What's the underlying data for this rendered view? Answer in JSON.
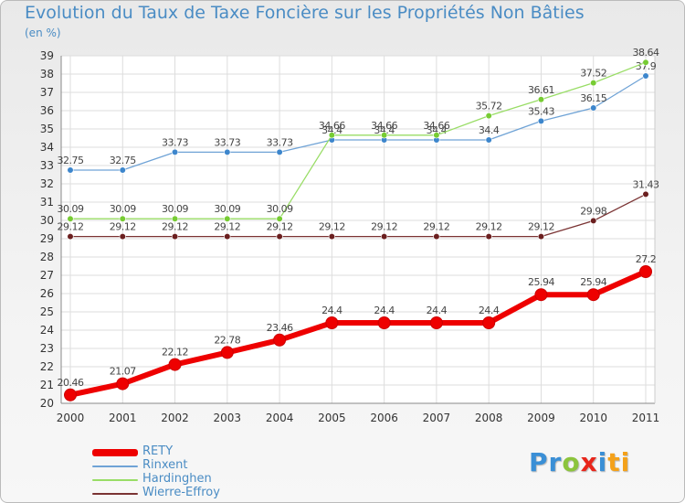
{
  "header": {
    "title": "Evolution du Taux de Taxe Foncière sur les Propriétés Non Bâties",
    "subtitle": "(en %)"
  },
  "brand": {
    "p1": "Pr",
    "p2": "o",
    "p3": "x",
    "p4": "i",
    "p5": "ti"
  },
  "chart_data": {
    "type": "line",
    "title": "Evolution du Taux de Taxe Foncière sur les Propriétés Non Bâties",
    "ylabel": "(en %)",
    "xlabel": "",
    "ylim": [
      20,
      39
    ],
    "grid": true,
    "legend_position": "bottom-left",
    "x": [
      "2000",
      "2001",
      "2002",
      "2003",
      "2004",
      "2005",
      "2006",
      "2007",
      "2008",
      "2009",
      "2010",
      "2011"
    ],
    "y_ticks": [
      20,
      21,
      22,
      23,
      24,
      25,
      26,
      27,
      28,
      29,
      30,
      31,
      32,
      33,
      34,
      35,
      36,
      37,
      38,
      39
    ],
    "series": [
      {
        "name": "RETY",
        "color": "#ee0000",
        "width": 6,
        "values": [
          20.46,
          21.07,
          22.12,
          22.78,
          23.46,
          24.4,
          24.4,
          24.4,
          24.4,
          25.94,
          25.94,
          27.2
        ],
        "labels": [
          "20.46",
          "21.07",
          "22.12",
          "22.78",
          "23.46",
          "24.4",
          "24.4",
          "24.4",
          "24.4",
          "25.94",
          "25.94",
          "27.2"
        ]
      },
      {
        "name": "Rinxent",
        "color": "#6fa3d6",
        "width": 1.3,
        "marker": "#3d86cc",
        "values": [
          32.75,
          32.75,
          33.73,
          33.73,
          33.73,
          34.4,
          34.4,
          34.4,
          34.4,
          35.43,
          36.15,
          37.9
        ],
        "labels": [
          "32.75",
          "32.75",
          "33.73",
          "33.73",
          "33.73",
          "34.4",
          "34.4",
          "34.4",
          "34.4",
          "35.43",
          "36.15",
          "37.9"
        ]
      },
      {
        "name": "Hardinghen",
        "color": "#99dd66",
        "width": 1.3,
        "marker": "#77cc33",
        "values": [
          30.09,
          30.09,
          30.09,
          30.09,
          30.09,
          34.66,
          34.66,
          34.66,
          35.72,
          36.61,
          37.52,
          38.64
        ],
        "labels": [
          "30.09",
          "30.09",
          "30.09",
          "30.09",
          "30.09",
          "34.66",
          "34.66",
          "34.66",
          "35.72",
          "36.61",
          "37.52",
          "38.64"
        ]
      },
      {
        "name": "Wierre-Effroy",
        "color": "#7a3333",
        "width": 1.3,
        "marker": "#6b1f1f",
        "values": [
          29.12,
          29.12,
          29.12,
          29.12,
          29.12,
          29.12,
          29.12,
          29.12,
          29.12,
          29.12,
          29.98,
          31.43
        ],
        "labels": [
          "29.12",
          "29.12",
          "29.12",
          "29.12",
          "29.12",
          "29.12",
          "29.12",
          "29.12",
          "29.12",
          "29.12",
          "29.98",
          "31.43"
        ]
      }
    ]
  }
}
